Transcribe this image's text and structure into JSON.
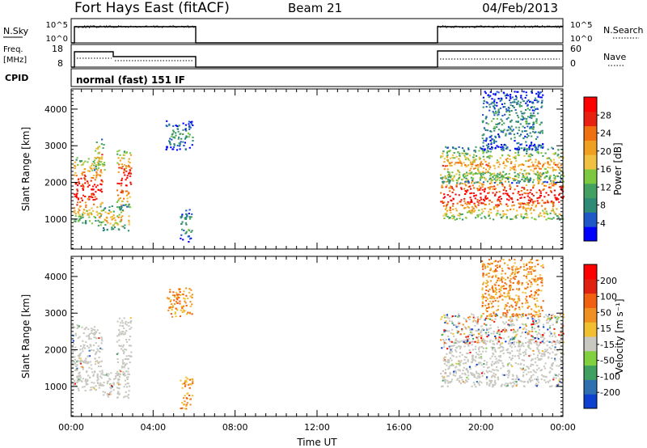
{
  "header": {
    "station": "Fort Hays East (fitACF)",
    "beam": "Beam 21",
    "date": "04/Feb/2013"
  },
  "panels": {
    "nsky": {
      "label": "N.Sky",
      "ytick_top": "10^5",
      "ytick_bottom": "10^0",
      "right_label": "N.Search",
      "right_top": "10^5",
      "right_bottom": "10^0"
    },
    "freq": {
      "label_line1": "Freq.",
      "label_line2": "[MHz]",
      "ytick_top": "18",
      "ytick_bottom": "8",
      "right_label": "Nave",
      "right_top": "60",
      "right_bottom": "0"
    },
    "cpid": {
      "label": "CPID",
      "text": "normal (fast) 151 IF"
    }
  },
  "chart_data": [
    {
      "type": "heatmap",
      "name": "Power",
      "xlabel": "",
      "ylabel": "Slant Range [km]",
      "xlim": [
        0,
        24
      ],
      "ylim": [
        180,
        4550
      ],
      "yticks": [
        "1000",
        "2000",
        "3000",
        "4000"
      ],
      "colorbar": {
        "label": "Power [dB]",
        "ticks": [
          "4",
          "8",
          "12",
          "16",
          "20",
          "24",
          "28"
        ],
        "range": [
          0,
          32
        ],
        "colors": [
          "#0000ff",
          "#2058c8",
          "#2e8b76",
          "#44a060",
          "#7cc840",
          "#f0c040",
          "#f0a020",
          "#f07010",
          "#e82010",
          "#ff0000"
        ]
      },
      "regions": [
        {
          "t": [
            0.1,
            1.5
          ],
          "r": [
            900,
            2700
          ],
          "level": "high"
        },
        {
          "t": [
            1.1,
            1.6
          ],
          "r": [
            2300,
            3200
          ],
          "level": "mid"
        },
        {
          "t": [
            1.2,
            2.8
          ],
          "r": [
            700,
            1400
          ],
          "level": "mid"
        },
        {
          "t": [
            2.2,
            2.9
          ],
          "r": [
            1300,
            2900
          ],
          "level": "high"
        },
        {
          "t": [
            4.6,
            5.9
          ],
          "r": [
            2900,
            3700
          ],
          "level": "low"
        },
        {
          "t": [
            5.3,
            5.9
          ],
          "r": [
            400,
            1300
          ],
          "level": "low"
        },
        {
          "t": [
            18.0,
            24.0
          ],
          "r": [
            1000,
            2300
          ],
          "level": "high"
        },
        {
          "t": [
            18.0,
            24.0
          ],
          "r": [
            2000,
            3000
          ],
          "level": "mid"
        },
        {
          "t": [
            20.0,
            23.0
          ],
          "r": [
            2900,
            4500
          ],
          "level": "low"
        }
      ]
    },
    {
      "type": "heatmap",
      "name": "Velocity",
      "xlabel": "Time UT",
      "ylabel": "Slant Range [km]",
      "xlim": [
        0,
        24
      ],
      "ylim": [
        180,
        4550
      ],
      "xticks": [
        "00:00",
        "04:00",
        "08:00",
        "12:00",
        "16:00",
        "20:00",
        "00:00"
      ],
      "yticks": [
        "1000",
        "2000",
        "3000",
        "4000"
      ],
      "colorbar": {
        "label": "Velocity [m s⁻¹]",
        "ticks": [
          "200",
          "100",
          "50",
          "15",
          "-15",
          "-50",
          "-100",
          "-200"
        ],
        "colors": [
          "#1040d0",
          "#3070b0",
          "#40a060",
          "#80d040",
          "#c8c8c0",
          "#f0c030",
          "#f09020",
          "#f06010",
          "#e02010",
          "#ff0000"
        ]
      },
      "regions": [
        {
          "t": [
            0.0,
            1.5
          ],
          "r": [
            900,
            2700
          ],
          "level": "ground"
        },
        {
          "t": [
            1.2,
            2.8
          ],
          "r": [
            700,
            1400
          ],
          "level": "ground"
        },
        {
          "t": [
            2.2,
            2.9
          ],
          "r": [
            1300,
            2900
          ],
          "level": "ground"
        },
        {
          "t": [
            4.6,
            5.9
          ],
          "r": [
            2900,
            3700
          ],
          "level": "neg"
        },
        {
          "t": [
            5.3,
            5.9
          ],
          "r": [
            400,
            1300
          ],
          "level": "neg"
        },
        {
          "t": [
            18.0,
            24.0
          ],
          "r": [
            1000,
            2300
          ],
          "level": "ground"
        },
        {
          "t": [
            18.0,
            24.0
          ],
          "r": [
            2200,
            3000
          ],
          "level": "mix"
        },
        {
          "t": [
            20.0,
            23.0
          ],
          "r": [
            2900,
            4500
          ],
          "level": "neg"
        }
      ]
    }
  ]
}
